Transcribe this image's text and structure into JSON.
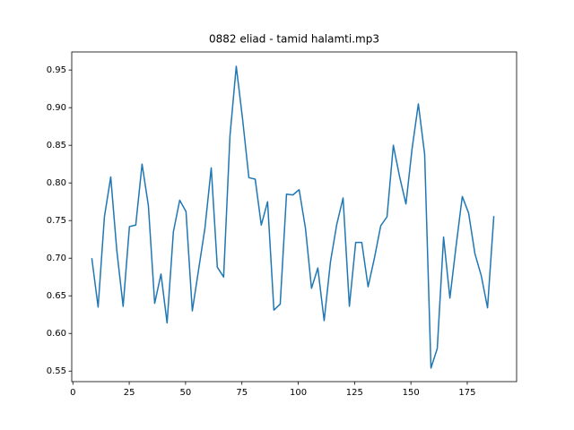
{
  "chart_data": {
    "type": "line",
    "title": "0882 eliad - tamid halamti.mp3",
    "color": "#1f77b4",
    "x": [
      8.4,
      11.2,
      14.0,
      16.8,
      19.5,
      22.3,
      25.1,
      27.9,
      30.7,
      33.5,
      36.3,
      39.1,
      41.8,
      44.6,
      47.4,
      50.2,
      53.0,
      55.8,
      58.6,
      61.4,
      64.1,
      66.9,
      69.7,
      72.5,
      75.3,
      78.1,
      80.9,
      83.6,
      86.4,
      89.2,
      92.0,
      94.8,
      97.6,
      100.4,
      103.2,
      105.9,
      108.7,
      111.5,
      114.3,
      117.1,
      119.9,
      122.7,
      125.5,
      128.2,
      131.0,
      133.8,
      136.6,
      139.4,
      142.2,
      145.0,
      147.8,
      150.5,
      153.3,
      156.1,
      158.9,
      161.7,
      164.5,
      167.3,
      170.0,
      172.8,
      175.6,
      178.4,
      181.2,
      184.0,
      186.8
    ],
    "values": [
      0.7,
      0.635,
      0.755,
      0.808,
      0.71,
      0.636,
      0.742,
      0.744,
      0.825,
      0.77,
      0.64,
      0.679,
      0.614,
      0.735,
      0.777,
      0.762,
      0.63,
      0.685,
      0.74,
      0.82,
      0.688,
      0.675,
      0.862,
      0.955,
      0.885,
      0.807,
      0.805,
      0.744,
      0.775,
      0.631,
      0.639,
      0.785,
      0.784,
      0.791,
      0.74,
      0.66,
      0.687,
      0.617,
      0.695,
      0.745,
      0.78,
      0.636,
      0.721,
      0.721,
      0.662,
      0.7,
      0.743,
      0.755,
      0.85,
      0.808,
      0.772,
      0.845,
      0.905,
      0.838,
      0.554,
      0.58,
      0.728,
      0.647,
      0.715,
      0.782,
      0.76,
      0.706,
      0.677,
      0.634,
      0.756
    ],
    "xlim": [
      -0.5,
      196.9
    ],
    "ylim": [
      0.536,
      0.974
    ],
    "xticks": [
      0,
      25,
      50,
      75,
      100,
      125,
      150,
      175
    ],
    "yticks": [
      {
        "value": 0.55,
        "label": "0.55"
      },
      {
        "value": 0.6,
        "label": "0.60"
      },
      {
        "value": 0.65,
        "label": "0.65"
      },
      {
        "value": 0.7,
        "label": "0.70"
      },
      {
        "value": 0.75,
        "label": "0.75"
      },
      {
        "value": 0.8,
        "label": "0.80"
      },
      {
        "value": 0.85,
        "label": "0.85"
      },
      {
        "value": 0.9,
        "label": "0.90"
      },
      {
        "value": 0.95,
        "label": "0.95"
      }
    ]
  }
}
